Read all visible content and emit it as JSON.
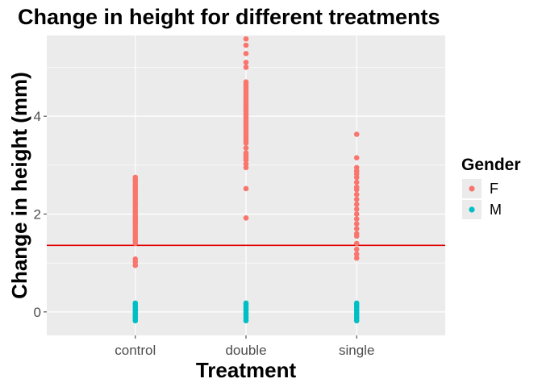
{
  "chart_data": {
    "type": "scatter",
    "title": "Change in height for different treatments",
    "xlabel": "Treatment",
    "ylabel": "Change in height (mm)",
    "categories": [
      "control",
      "double",
      "single"
    ],
    "ylim": [
      -0.48,
      5.65
    ],
    "yticks": [
      0,
      2,
      4
    ],
    "grid": true,
    "hline": {
      "y": 1.36,
      "color": "#e00000"
    },
    "legend": {
      "title": "Gender",
      "position": "right",
      "entries": [
        {
          "label": "F",
          "color": "#f8766d"
        },
        {
          "label": "M",
          "color": "#00bfc4"
        }
      ]
    },
    "series": [
      {
        "name": "F",
        "color": "#f8766d",
        "points": [
          {
            "x": "control",
            "y": [
              0.95,
              1.02,
              1.08,
              1.4,
              1.45,
              1.5,
              1.55,
              1.6,
              1.65,
              1.7,
              1.75,
              1.8,
              1.85,
              1.9,
              1.95,
              2.0,
              2.05,
              2.1,
              2.15,
              2.2,
              2.25,
              2.3,
              2.35,
              2.4,
              2.45,
              2.5,
              2.55,
              2.6,
              2.65,
              2.7,
              2.75
            ]
          },
          {
            "x": "double",
            "y": [
              1.92,
              2.52,
              2.95,
              3.02,
              3.1,
              3.15,
              3.2,
              3.25,
              3.35,
              3.45,
              3.5,
              3.55,
              3.6,
              3.65,
              3.7,
              3.75,
              3.8,
              3.85,
              3.9,
              3.95,
              4.0,
              4.05,
              4.1,
              4.15,
              4.2,
              4.25,
              4.3,
              4.35,
              4.4,
              4.45,
              4.5,
              4.55,
              4.6,
              4.65,
              4.7,
              5.0,
              5.1,
              5.28,
              5.45,
              5.58
            ]
          },
          {
            "x": "single",
            "y": [
              1.1,
              1.18,
              1.28,
              1.4,
              1.55,
              1.6,
              1.7,
              1.8,
              1.9,
              2.0,
              2.1,
              2.2,
              2.3,
              2.4,
              2.5,
              2.55,
              2.65,
              2.75,
              2.82,
              2.88,
              2.95,
              3.15,
              3.63
            ]
          }
        ]
      },
      {
        "name": "M",
        "color": "#00bfc4",
        "points": [
          {
            "x": "control",
            "y": [
              -0.18,
              -0.14,
              -0.1,
              -0.06,
              -0.02,
              0.02,
              0.06,
              0.1,
              0.14,
              0.18
            ]
          },
          {
            "x": "double",
            "y": [
              -0.18,
              -0.14,
              -0.1,
              -0.06,
              -0.02,
              0.02,
              0.06,
              0.1,
              0.14,
              0.18
            ]
          },
          {
            "x": "single",
            "y": [
              -0.18,
              -0.14,
              -0.1,
              -0.06,
              -0.02,
              0.02,
              0.06,
              0.1,
              0.14,
              0.18
            ]
          }
        ]
      }
    ]
  }
}
